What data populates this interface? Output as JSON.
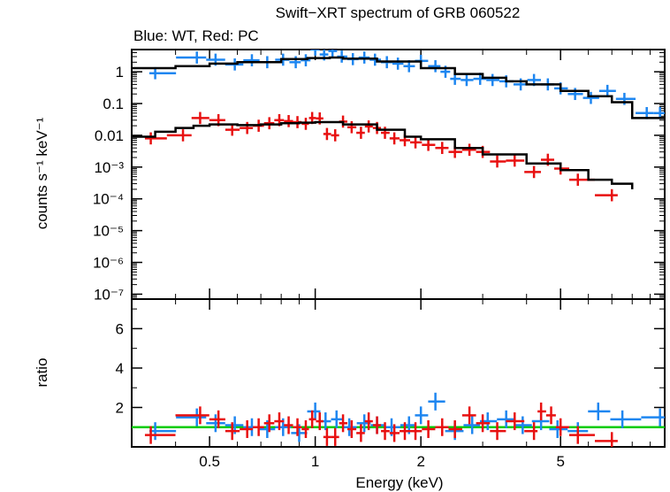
{
  "chart_data": {
    "type": "scatter",
    "title": "Swift−XRT spectrum of GRB 060522",
    "subtitle": "Blue: WT, Red: PC",
    "xlabel": "Energy (keV)",
    "xscale": "log",
    "xlim": [
      0.3,
      9.9
    ],
    "x_ticks": [
      {
        "value": 0.5,
        "label": "0.5"
      },
      {
        "value": 1,
        "label": "1"
      },
      {
        "value": 2,
        "label": "2"
      },
      {
        "value": 5,
        "label": "5"
      }
    ],
    "panels": [
      {
        "id": "spectrum",
        "ylabel": "counts s⁻¹ keV⁻¹",
        "yscale": "log",
        "ylim": [
          7e-08,
          5
        ],
        "y_ticks": [
          {
            "value": 1,
            "label": "1"
          },
          {
            "value": 0.1,
            "label": "0.1"
          },
          {
            "value": 0.01,
            "label": "0.01"
          },
          {
            "value": 0.001,
            "label": "10⁻³"
          },
          {
            "value": 0.0001,
            "label": "10⁻⁴"
          },
          {
            "value": 1e-05,
            "label": "10⁻⁵"
          },
          {
            "value": 1e-06,
            "label": "10⁻⁶"
          },
          {
            "value": 1e-07,
            "label": "10⁻⁷"
          }
        ],
        "series": [
          {
            "name": "WT",
            "color": "#1e86f0",
            "kind": "data",
            "points": [
              {
                "x": 0.35,
                "y": 0.9
              },
              {
                "x": 0.46,
                "y": 2.8
              },
              {
                "x": 0.52,
                "y": 2.4
              },
              {
                "x": 0.59,
                "y": 1.7
              },
              {
                "x": 0.66,
                "y": 2.3
              },
              {
                "x": 0.73,
                "y": 2.0
              },
              {
                "x": 0.81,
                "y": 2.4
              },
              {
                "x": 0.88,
                "y": 2.0
              },
              {
                "x": 0.94,
                "y": 2.3
              },
              {
                "x": 1.0,
                "y": 5.0
              },
              {
                "x": 1.06,
                "y": 3.5
              },
              {
                "x": 1.12,
                "y": 4.5
              },
              {
                "x": 1.19,
                "y": 3.0
              },
              {
                "x": 1.28,
                "y": 2.5
              },
              {
                "x": 1.38,
                "y": 2.8
              },
              {
                "x": 1.48,
                "y": 2.4
              },
              {
                "x": 1.6,
                "y": 2.0
              },
              {
                "x": 1.72,
                "y": 1.8
              },
              {
                "x": 1.85,
                "y": 1.5
              },
              {
                "x": 2.0,
                "y": 2.2
              },
              {
                "x": 2.2,
                "y": 1.5
              },
              {
                "x": 2.35,
                "y": 1.0
              },
              {
                "x": 2.5,
                "y": 0.6
              },
              {
                "x": 2.7,
                "y": 0.55
              },
              {
                "x": 2.95,
                "y": 0.6
              },
              {
                "x": 3.2,
                "y": 0.55
              },
              {
                "x": 3.5,
                "y": 0.5
              },
              {
                "x": 3.85,
                "y": 0.4
              },
              {
                "x": 4.2,
                "y": 0.55
              },
              {
                "x": 4.6,
                "y": 0.4
              },
              {
                "x": 5.0,
                "y": 0.3
              },
              {
                "x": 5.5,
                "y": 0.2
              },
              {
                "x": 6.1,
                "y": 0.15
              },
              {
                "x": 6.8,
                "y": 0.25
              },
              {
                "x": 7.6,
                "y": 0.14
              },
              {
                "x": 8.8,
                "y": 0.05
              },
              {
                "x": 9.6,
                "y": 0.05
              }
            ]
          },
          {
            "name": "PC",
            "color": "#e81010",
            "kind": "data",
            "points": [
              {
                "x": 0.34,
                "y": 0.008
              },
              {
                "x": 0.42,
                "y": 0.01
              },
              {
                "x": 0.47,
                "y": 0.035
              },
              {
                "x": 0.53,
                "y": 0.03
              },
              {
                "x": 0.58,
                "y": 0.015
              },
              {
                "x": 0.64,
                "y": 0.017
              },
              {
                "x": 0.69,
                "y": 0.02
              },
              {
                "x": 0.74,
                "y": 0.024
              },
              {
                "x": 0.79,
                "y": 0.03
              },
              {
                "x": 0.84,
                "y": 0.028
              },
              {
                "x": 0.89,
                "y": 0.026
              },
              {
                "x": 0.94,
                "y": 0.023
              },
              {
                "x": 0.98,
                "y": 0.035
              },
              {
                "x": 1.03,
                "y": 0.034
              },
              {
                "x": 1.08,
                "y": 0.011
              },
              {
                "x": 1.14,
                "y": 0.01
              },
              {
                "x": 1.2,
                "y": 0.027
              },
              {
                "x": 1.27,
                "y": 0.018
              },
              {
                "x": 1.35,
                "y": 0.012
              },
              {
                "x": 1.42,
                "y": 0.019
              },
              {
                "x": 1.5,
                "y": 0.017
              },
              {
                "x": 1.58,
                "y": 0.012
              },
              {
                "x": 1.68,
                "y": 0.008
              },
              {
                "x": 1.8,
                "y": 0.007
              },
              {
                "x": 1.93,
                "y": 0.006
              },
              {
                "x": 2.1,
                "y": 0.005
              },
              {
                "x": 2.3,
                "y": 0.004
              },
              {
                "x": 2.5,
                "y": 0.003
              },
              {
                "x": 2.75,
                "y": 0.0035
              },
              {
                "x": 3.0,
                "y": 0.003
              },
              {
                "x": 3.3,
                "y": 0.0015
              },
              {
                "x": 3.7,
                "y": 0.0016
              },
              {
                "x": 4.2,
                "y": 0.0007
              },
              {
                "x": 4.6,
                "y": 0.0017
              },
              {
                "x": 5.0,
                "y": 0.0009
              },
              {
                "x": 5.6,
                "y": 0.0004
              },
              {
                "x": 7.0,
                "y": 0.00013
              }
            ]
          },
          {
            "name": "WT model",
            "color": "#000000",
            "kind": "model",
            "points": [
              {
                "x": 0.3,
                "y": 1.3
              },
              {
                "x": 0.4,
                "y": 1.5
              },
              {
                "x": 0.5,
                "y": 1.8
              },
              {
                "x": 0.6,
                "y": 2.0
              },
              {
                "x": 0.8,
                "y": 2.5
              },
              {
                "x": 0.95,
                "y": 2.7
              },
              {
                "x": 1.1,
                "y": 2.8
              },
              {
                "x": 1.2,
                "y": 2.6
              },
              {
                "x": 1.5,
                "y": 2.1
              },
              {
                "x": 2.0,
                "y": 1.3
              },
              {
                "x": 2.5,
                "y": 0.85
              },
              {
                "x": 3.0,
                "y": 0.65
              },
              {
                "x": 3.5,
                "y": 0.5
              },
              {
                "x": 4.0,
                "y": 0.4
              },
              {
                "x": 5.0,
                "y": 0.25
              },
              {
                "x": 6.0,
                "y": 0.17
              },
              {
                "x": 7.0,
                "y": 0.11
              },
              {
                "x": 8.0,
                "y": 0.035
              },
              {
                "x": 9.9,
                "y": 0.035
              }
            ]
          },
          {
            "name": "PC model",
            "color": "#000000",
            "kind": "model",
            "points": [
              {
                "x": 0.3,
                "y": 0.009
              },
              {
                "x": 0.35,
                "y": 0.013
              },
              {
                "x": 0.4,
                "y": 0.017
              },
              {
                "x": 0.45,
                "y": 0.02
              },
              {
                "x": 0.5,
                "y": 0.022
              },
              {
                "x": 0.6,
                "y": 0.021
              },
              {
                "x": 0.7,
                "y": 0.022
              },
              {
                "x": 0.8,
                "y": 0.024
              },
              {
                "x": 0.9,
                "y": 0.025
              },
              {
                "x": 1.0,
                "y": 0.026
              },
              {
                "x": 1.2,
                "y": 0.022
              },
              {
                "x": 1.5,
                "y": 0.015
              },
              {
                "x": 1.8,
                "y": 0.009
              },
              {
                "x": 2.0,
                "y": 0.0075
              },
              {
                "x": 2.5,
                "y": 0.004
              },
              {
                "x": 3.0,
                "y": 0.0025
              },
              {
                "x": 4.0,
                "y": 0.0013
              },
              {
                "x": 5.0,
                "y": 0.0008
              },
              {
                "x": 6.0,
                "y": 0.0004
              },
              {
                "x": 7.0,
                "y": 0.0003
              },
              {
                "x": 8.0,
                "y": 0.0002
              }
            ]
          }
        ]
      },
      {
        "id": "ratio",
        "ylabel": "ratio",
        "yscale": "linear",
        "ylim": [
          0,
          7.5
        ],
        "y_ticks": [
          {
            "value": 2,
            "label": "2"
          },
          {
            "value": 4,
            "label": "4"
          },
          {
            "value": 6,
            "label": "6"
          }
        ],
        "reference_line": {
          "y": 1,
          "color": "#00cc00"
        },
        "series": [
          {
            "name": "WT ratio",
            "color": "#1e86f0",
            "kind": "data",
            "points": [
              {
                "x": 0.35,
                "y": 0.8
              },
              {
                "x": 0.46,
                "y": 1.5
              },
              {
                "x": 0.52,
                "y": 1.2
              },
              {
                "x": 0.59,
                "y": 1.1
              },
              {
                "x": 0.66,
                "y": 1.0
              },
              {
                "x": 0.73,
                "y": 0.9
              },
              {
                "x": 0.81,
                "y": 1.0
              },
              {
                "x": 0.9,
                "y": 0.7
              },
              {
                "x": 1.0,
                "y": 1.8
              },
              {
                "x": 1.07,
                "y": 1.3
              },
              {
                "x": 1.15,
                "y": 1.4
              },
              {
                "x": 1.25,
                "y": 1.0
              },
              {
                "x": 1.38,
                "y": 1.2
              },
              {
                "x": 1.5,
                "y": 1.1
              },
              {
                "x": 1.65,
                "y": 1.0
              },
              {
                "x": 1.85,
                "y": 1.1
              },
              {
                "x": 2.0,
                "y": 1.6
              },
              {
                "x": 2.2,
                "y": 2.3
              },
              {
                "x": 2.5,
                "y": 0.8
              },
              {
                "x": 2.8,
                "y": 1.1
              },
              {
                "x": 3.1,
                "y": 1.3
              },
              {
                "x": 3.5,
                "y": 1.4
              },
              {
                "x": 3.9,
                "y": 1.1
              },
              {
                "x": 4.4,
                "y": 1.3
              },
              {
                "x": 4.9,
                "y": 0.9
              },
              {
                "x": 5.6,
                "y": 0.8
              },
              {
                "x": 6.4,
                "y": 1.8
              },
              {
                "x": 7.5,
                "y": 1.4
              },
              {
                "x": 9.6,
                "y": 1.5
              }
            ]
          },
          {
            "name": "PC ratio",
            "color": "#e81010",
            "kind": "data",
            "points": [
              {
                "x": 0.34,
                "y": 0.6
              },
              {
                "x": 0.47,
                "y": 1.6
              },
              {
                "x": 0.53,
                "y": 1.4
              },
              {
                "x": 0.58,
                "y": 0.8
              },
              {
                "x": 0.64,
                "y": 0.9
              },
              {
                "x": 0.69,
                "y": 1.0
              },
              {
                "x": 0.74,
                "y": 1.2
              },
              {
                "x": 0.79,
                "y": 1.3
              },
              {
                "x": 0.84,
                "y": 1.1
              },
              {
                "x": 0.89,
                "y": 1.0
              },
              {
                "x": 0.94,
                "y": 0.9
              },
              {
                "x": 0.98,
                "y": 1.4
              },
              {
                "x": 1.03,
                "y": 1.3
              },
              {
                "x": 1.08,
                "y": 0.5
              },
              {
                "x": 1.14,
                "y": 0.5
              },
              {
                "x": 1.2,
                "y": 1.2
              },
              {
                "x": 1.27,
                "y": 0.9
              },
              {
                "x": 1.35,
                "y": 0.7
              },
              {
                "x": 1.42,
                "y": 1.3
              },
              {
                "x": 1.5,
                "y": 1.1
              },
              {
                "x": 1.58,
                "y": 0.8
              },
              {
                "x": 1.68,
                "y": 0.7
              },
              {
                "x": 1.8,
                "y": 0.8
              },
              {
                "x": 1.93,
                "y": 0.8
              },
              {
                "x": 2.1,
                "y": 0.9
              },
              {
                "x": 2.3,
                "y": 1.0
              },
              {
                "x": 2.5,
                "y": 0.9
              },
              {
                "x": 2.75,
                "y": 1.6
              },
              {
                "x": 3.0,
                "y": 1.2
              },
              {
                "x": 3.3,
                "y": 0.8
              },
              {
                "x": 3.7,
                "y": 1.3
              },
              {
                "x": 4.2,
                "y": 0.8
              },
              {
                "x": 4.4,
                "y": 1.8
              },
              {
                "x": 4.7,
                "y": 1.6
              },
              {
                "x": 5.0,
                "y": 1.0
              },
              {
                "x": 5.6,
                "y": 0.6
              },
              {
                "x": 7.0,
                "y": 0.3
              }
            ]
          }
        ]
      }
    ]
  }
}
